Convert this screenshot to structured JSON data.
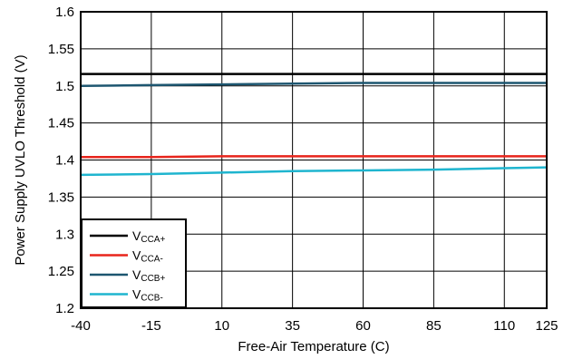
{
  "chart_data": {
    "type": "line",
    "title": "",
    "xlabel": "Free-Air Temperature (C)",
    "ylabel": "Power Supply UVLO Threshold (V)",
    "xlim": [
      -40,
      125
    ],
    "ylim": [
      1.2,
      1.6
    ],
    "x_ticks": [
      -40,
      -15,
      10,
      35,
      60,
      85,
      110,
      125
    ],
    "x_tick_labels": [
      "-40",
      "-15",
      "10",
      "35",
      "60",
      "85",
      "110",
      "125"
    ],
    "y_ticks": [
      1.2,
      1.25,
      1.3,
      1.35,
      1.4,
      1.45,
      1.5,
      1.55,
      1.6
    ],
    "y_tick_labels": [
      "1.2",
      "1.25",
      "1.3",
      "1.35",
      "1.4",
      "1.45",
      "1.5",
      "1.55",
      "1.6"
    ],
    "grid": true,
    "legend_position": "bottom-left",
    "series": [
      {
        "name": "VCCA+",
        "name_main": "V",
        "name_sub": "CCA+",
        "color": "#000000",
        "x": [
          -40,
          -15,
          10,
          35,
          60,
          85,
          110,
          125
        ],
        "y": [
          1.516,
          1.516,
          1.516,
          1.516,
          1.516,
          1.516,
          1.516,
          1.516
        ]
      },
      {
        "name": "VCCA-",
        "name_main": "V",
        "name_sub": "CCA-",
        "color": "#e8251c",
        "x": [
          -40,
          -15,
          10,
          35,
          60,
          85,
          110,
          125
        ],
        "y": [
          1.404,
          1.404,
          1.405,
          1.405,
          1.405,
          1.405,
          1.405,
          1.405
        ]
      },
      {
        "name": "VCCB+",
        "name_main": "V",
        "name_sub": "CCB+",
        "color": "#1d5670",
        "x": [
          -40,
          -15,
          10,
          35,
          60,
          85,
          110,
          125
        ],
        "y": [
          1.5,
          1.501,
          1.502,
          1.503,
          1.504,
          1.504,
          1.504,
          1.504
        ]
      },
      {
        "name": "VCCB-",
        "name_main": "V",
        "name_sub": "CCB-",
        "color": "#1fb5cf",
        "x": [
          -40,
          -15,
          10,
          35,
          60,
          85,
          110,
          125
        ],
        "y": [
          1.38,
          1.381,
          1.383,
          1.385,
          1.386,
          1.387,
          1.389,
          1.39
        ]
      }
    ]
  }
}
